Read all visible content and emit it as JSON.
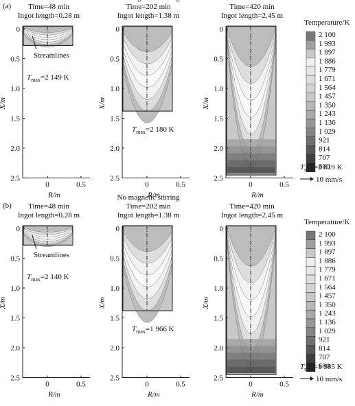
{
  "figure": {
    "axes": {
      "ylabel": "X/m",
      "xlabel": "R/m",
      "yticks": [
        "0",
        "0.5",
        "1.0",
        "1.5",
        "2.0",
        "2.5"
      ],
      "xticks": [
        "0",
        "0.5"
      ]
    },
    "colorbar": {
      "title": "Temperature/K",
      "levels": [
        "2 100",
        "1 993",
        "1 897",
        "1 886",
        "1 779",
        "1 671",
        "1 564",
        "1 457",
        "1 350",
        "1 243",
        "1 136",
        "1 029",
        "921",
        "814",
        "707",
        "600"
      ],
      "scale": "10 mm/s"
    },
    "rows": [
      {
        "label": "(a)",
        "panels": [
          {
            "lines": [
              "Time=48 min",
              "Ingot length=0.28 m"
            ],
            "tmax": {
              "symbol": "T",
              "sub": "max",
              "value": "=2 149 K"
            },
            "streamlines": "Streamlines"
          },
          {
            "lines": [
              "No magnetic stirring",
              "Time=202 min",
              "Ingot length=1.38 m"
            ],
            "tmax": {
              "symbol": "T",
              "sub": "max",
              "value": "=2 180 K"
            }
          },
          {
            "lines": [
              "Time=420 min",
              "Ingot length=2.45 m"
            ],
            "tmax": {
              "symbol": "T",
              "sub": "max",
              "value": "=2 019 K"
            }
          }
        ]
      },
      {
        "label": "(b)",
        "panels": [
          {
            "lines": [
              "Time=48 min",
              "Ingot length=0.28 m"
            ],
            "tmax": {
              "symbol": "T",
              "sub": "max",
              "value": "=2 140 K"
            },
            "streamlines": "Streamlines"
          },
          {
            "lines": [
              "No magnetic stirring",
              "Time=202 min",
              "Ingot length=1.38 m"
            ],
            "tmax": {
              "symbol": "T",
              "sub": "max",
              "value": "=1 966 K"
            }
          },
          {
            "lines": [
              "Time=420 min",
              "Ingot length=2.45 m"
            ],
            "tmax": {
              "symbol": "T",
              "sub": "max",
              "value": "=1 985 K"
            }
          }
        ]
      }
    ]
  }
}
